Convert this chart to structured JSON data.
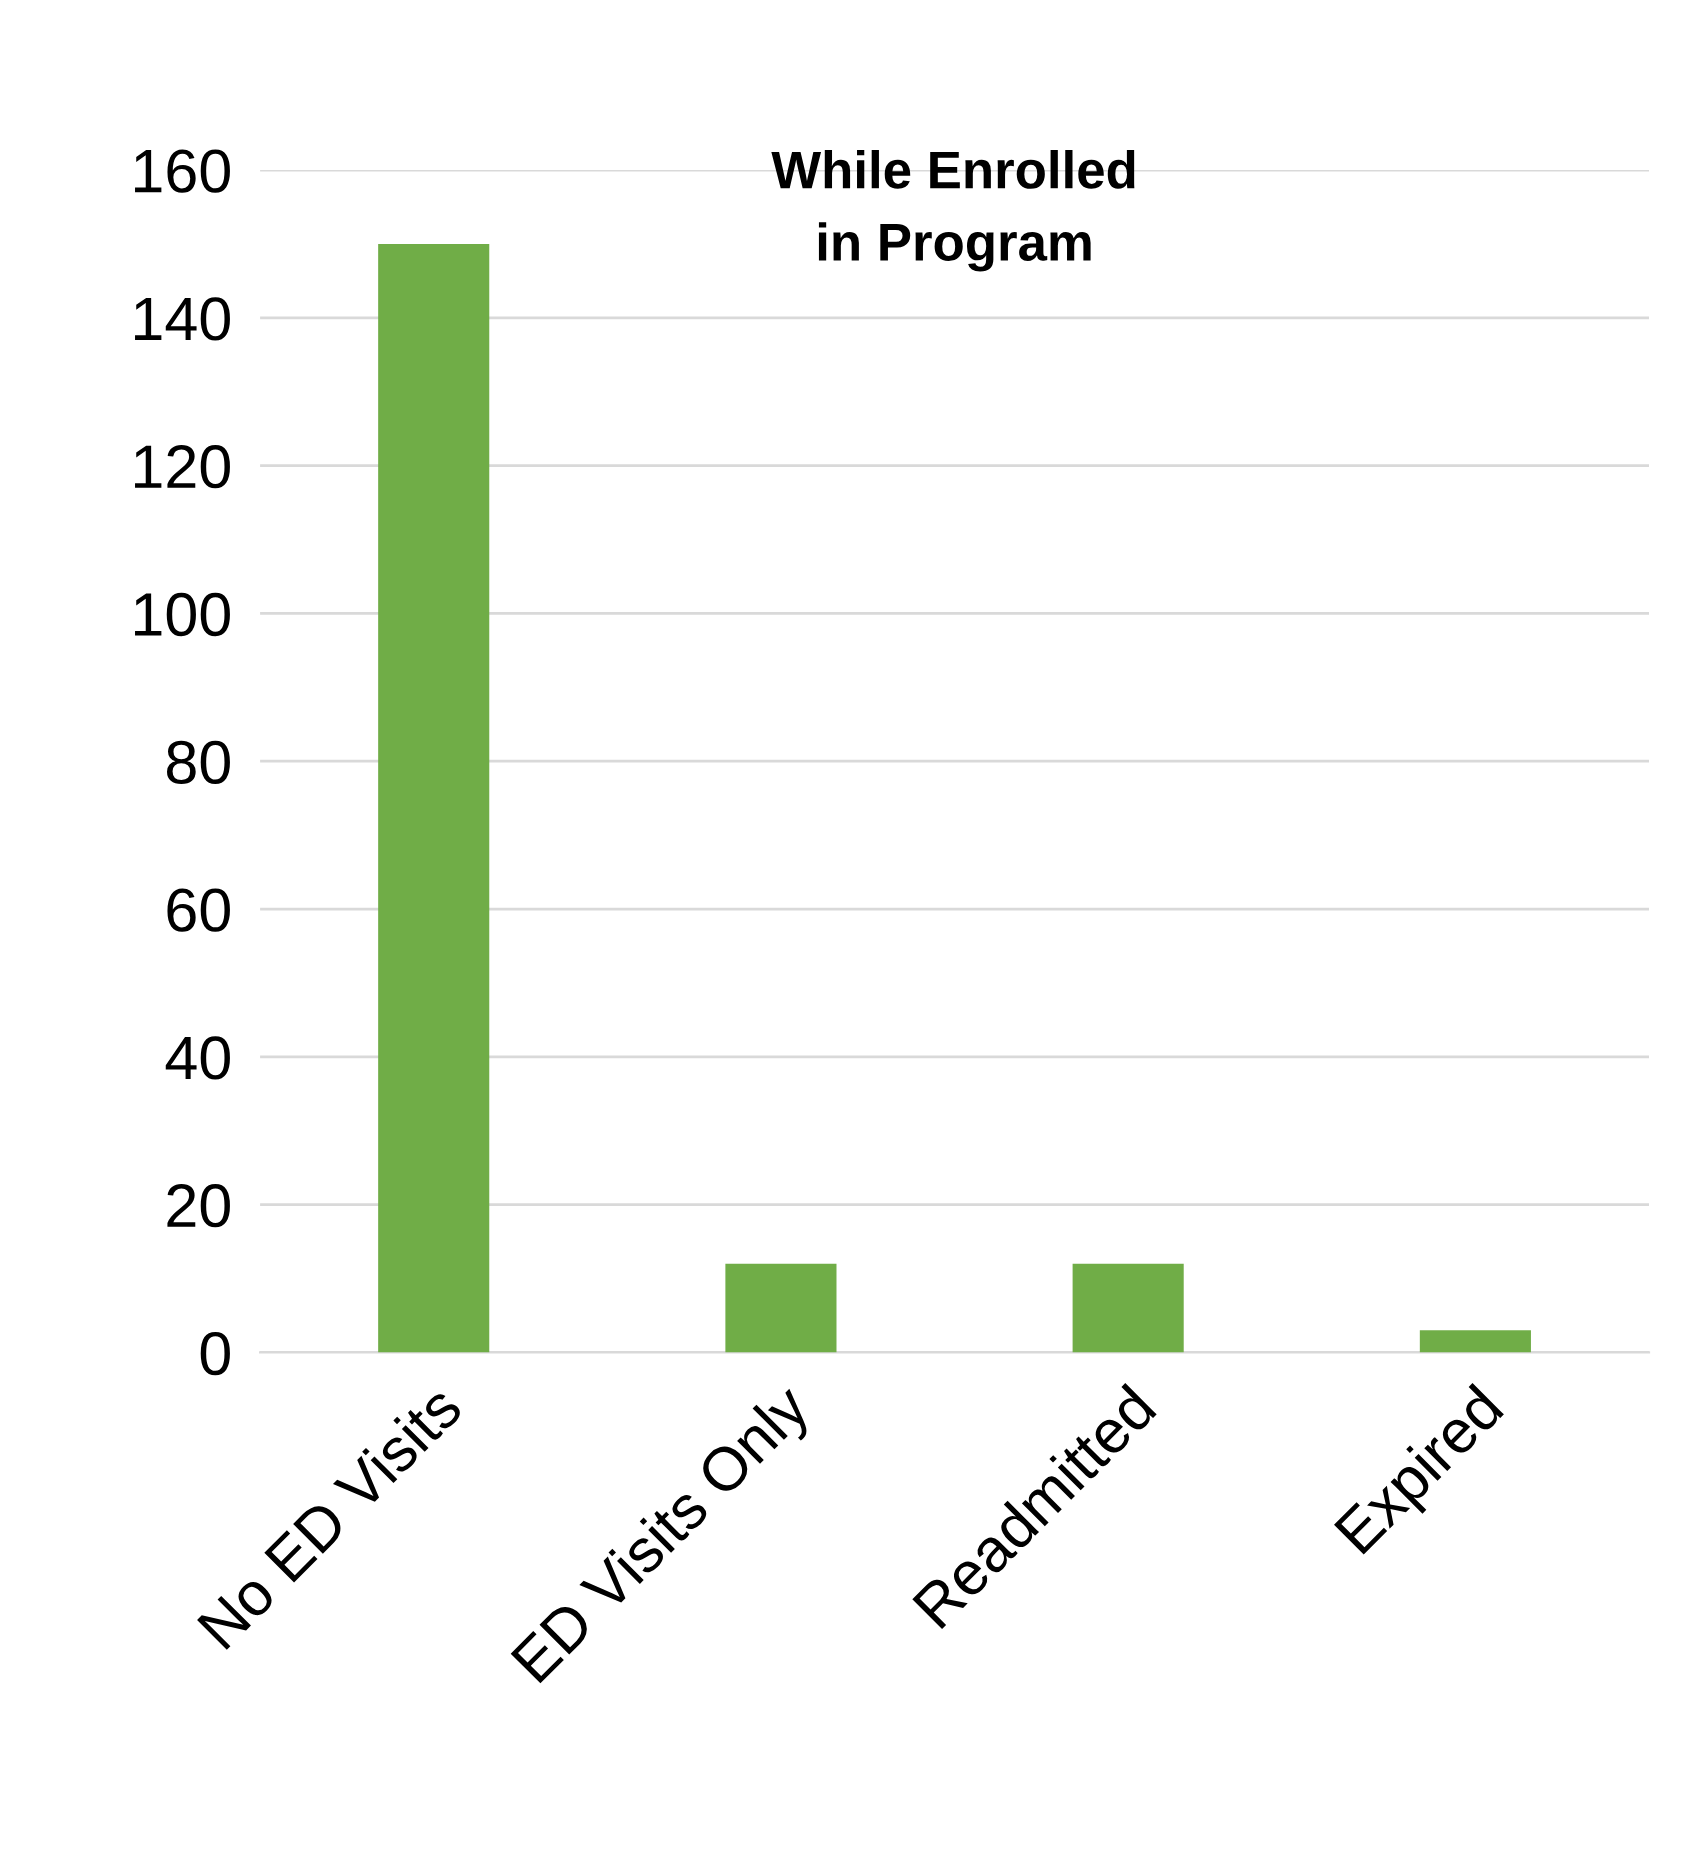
{
  "chart_data": {
    "type": "bar",
    "title": "While Enrolled\nin Program",
    "categories": [
      "No ED Visits",
      "ED Visits Only",
      "Readmitted",
      "Expired"
    ],
    "values": [
      150,
      12,
      12,
      3
    ],
    "color": "#70ad47",
    "ylim": [
      0,
      160
    ],
    "yticks": [
      0,
      20,
      40,
      60,
      80,
      100,
      120,
      140,
      160
    ],
    "grid": "y"
  }
}
